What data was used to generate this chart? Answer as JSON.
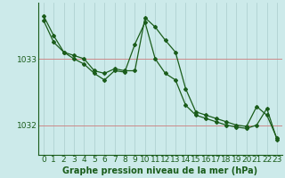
{
  "title": "Graphe pression niveau de la mer (hPa)",
  "bg_color": "#cceaea",
  "line_color": "#1a5c1a",
  "grid_color": "#aacccc",
  "grid_color_h": "#cc8888",
  "xlim": [
    -0.5,
    23.5
  ],
  "ylim": [
    1031.55,
    1033.85
  ],
  "yticks": [
    1032,
    1033
  ],
  "xticks": [
    0,
    1,
    2,
    3,
    4,
    5,
    6,
    7,
    8,
    9,
    10,
    11,
    12,
    13,
    14,
    15,
    16,
    17,
    18,
    19,
    20,
    21,
    22,
    23
  ],
  "series1": [
    1033.65,
    1033.35,
    1033.1,
    1033.05,
    1033.0,
    1032.82,
    1032.78,
    1032.85,
    1032.82,
    1032.82,
    1033.62,
    1033.48,
    1033.28,
    1033.1,
    1032.55,
    1032.2,
    1032.15,
    1032.1,
    1032.05,
    1032.0,
    1031.98,
    1032.28,
    1032.15,
    1031.8
  ],
  "series2": [
    1033.58,
    1033.25,
    1033.1,
    1033.0,
    1032.92,
    1032.78,
    1032.68,
    1032.82,
    1032.8,
    1033.22,
    1033.55,
    1033.0,
    1032.78,
    1032.68,
    1032.3,
    1032.15,
    1032.1,
    1032.05,
    1032.0,
    1031.97,
    1031.95,
    1032.0,
    1032.25,
    1031.78
  ],
  "tick_fontsize": 6.5,
  "title_fontsize": 7.0,
  "marker_size": 2.0,
  "linewidth": 0.9
}
